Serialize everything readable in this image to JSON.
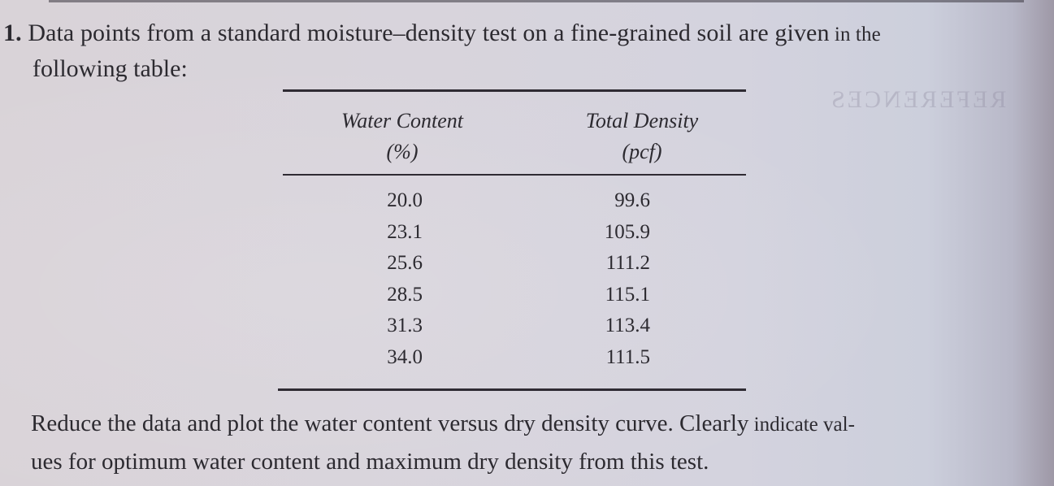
{
  "problem": {
    "number": "1.",
    "line1_main": "Data points from a standard moisture–density test on a fine-grained soil are given",
    "line1_tail": " in the",
    "line2": "following table:"
  },
  "table": {
    "headers": [
      {
        "label": "Water Content",
        "unit": "(%)"
      },
      {
        "label": "Total Density",
        "unit": "(pcf)"
      }
    ],
    "water_content": [
      "20.0",
      "23.1",
      "25.6",
      "28.5",
      "31.3",
      "34.0"
    ],
    "total_density": [
      "99.6",
      "105.9",
      "111.2",
      "115.1",
      "113.4",
      "111.5"
    ]
  },
  "instruction": {
    "line1_main": "Reduce the data and plot the water content versus dry density curve. Clearly",
    "line1_tail": " indicate val-",
    "line2": "ues for optimum water content and maximum dry density from this test."
  },
  "bleed_through": {
    "text": "REFERENCES"
  }
}
